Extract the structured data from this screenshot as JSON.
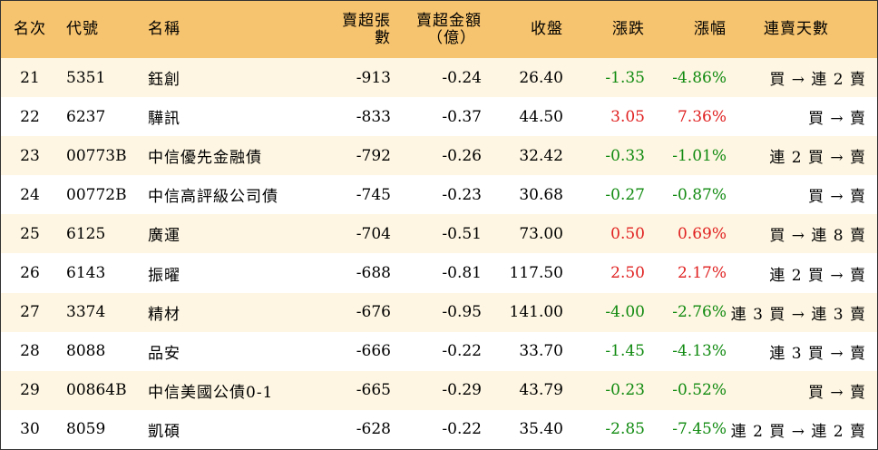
{
  "colors": {
    "header_bg": "#f6c36e",
    "odd_row_bg": "#fef6e2",
    "up": "#e02020",
    "down": "#108a10"
  },
  "headers": {
    "rank": "名次",
    "code": "代號",
    "name": "名稱",
    "volume": "賣超張數",
    "amount_line1": "賣超金額",
    "amount_line2": "（億）",
    "close": "收盤",
    "change": "漲跌",
    "percent": "漲幅",
    "days": "連賣天數"
  },
  "rows": [
    {
      "rank": "21",
      "code": "5351",
      "name": "鈺創",
      "volume": "-913",
      "amount": "-0.24",
      "close": "26.40",
      "change": "-1.35",
      "percent": "-4.86%",
      "days": "買 → 連 2 賣",
      "dir": "down"
    },
    {
      "rank": "22",
      "code": "6237",
      "name": "驊訊",
      "volume": "-833",
      "amount": "-0.37",
      "close": "44.50",
      "change": "3.05",
      "percent": "7.36%",
      "days": "買 → 賣",
      "dir": "up"
    },
    {
      "rank": "23",
      "code": "00773B",
      "name": "中信優先金融債",
      "volume": "-792",
      "amount": "-0.26",
      "close": "32.42",
      "change": "-0.33",
      "percent": "-1.01%",
      "days": "連 2 買 → 賣",
      "dir": "down"
    },
    {
      "rank": "24",
      "code": "00772B",
      "name": "中信高評級公司債",
      "volume": "-745",
      "amount": "-0.23",
      "close": "30.68",
      "change": "-0.27",
      "percent": "-0.87%",
      "days": "買 → 賣",
      "dir": "down"
    },
    {
      "rank": "25",
      "code": "6125",
      "name": "廣運",
      "volume": "-704",
      "amount": "-0.51",
      "close": "73.00",
      "change": "0.50",
      "percent": "0.69%",
      "days": "買 → 連 8 賣",
      "dir": "up"
    },
    {
      "rank": "26",
      "code": "6143",
      "name": "振曜",
      "volume": "-688",
      "amount": "-0.81",
      "close": "117.50",
      "change": "2.50",
      "percent": "2.17%",
      "days": "連 2 買 → 賣",
      "dir": "up"
    },
    {
      "rank": "27",
      "code": "3374",
      "name": "精材",
      "volume": "-676",
      "amount": "-0.95",
      "close": "141.00",
      "change": "-4.00",
      "percent": "-2.76%",
      "days": "連 3 買 → 連 3 賣",
      "dir": "down"
    },
    {
      "rank": "28",
      "code": "8088",
      "name": "品安",
      "volume": "-666",
      "amount": "-0.22",
      "close": "33.70",
      "change": "-1.45",
      "percent": "-4.13%",
      "days": "連 3 買 → 賣",
      "dir": "down"
    },
    {
      "rank": "29",
      "code": "00864B",
      "name": "中信美國公債0-1",
      "volume": "-665",
      "amount": "-0.29",
      "close": "43.79",
      "change": "-0.23",
      "percent": "-0.52%",
      "days": "買 → 賣",
      "dir": "down"
    },
    {
      "rank": "30",
      "code": "8059",
      "name": "凱碩",
      "volume": "-628",
      "amount": "-0.22",
      "close": "35.40",
      "change": "-2.85",
      "percent": "-7.45%",
      "days": "連 2 買 → 連 2 賣",
      "dir": "down"
    }
  ]
}
